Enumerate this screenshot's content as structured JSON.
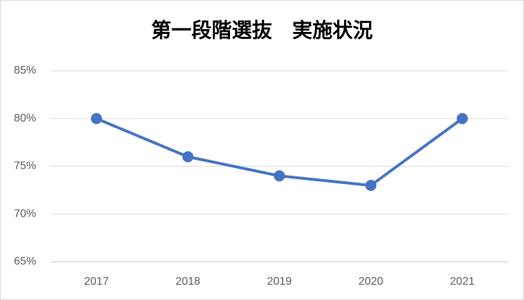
{
  "chart_data": {
    "type": "line",
    "title": "第一段階選抜　実施状況",
    "categories": [
      "2017",
      "2018",
      "2019",
      "2020",
      "2021"
    ],
    "values": [
      80,
      76,
      74,
      73,
      80
    ],
    "color": "#4472c4",
    "ylim": [
      65,
      85
    ],
    "yticks": [
      {
        "value": 65,
        "label": "65%"
      },
      {
        "value": 70,
        "label": "70%"
      },
      {
        "value": 75,
        "label": "75%"
      },
      {
        "value": 80,
        "label": "80%"
      },
      {
        "value": 85,
        "label": "85%"
      }
    ],
    "grid": true
  }
}
